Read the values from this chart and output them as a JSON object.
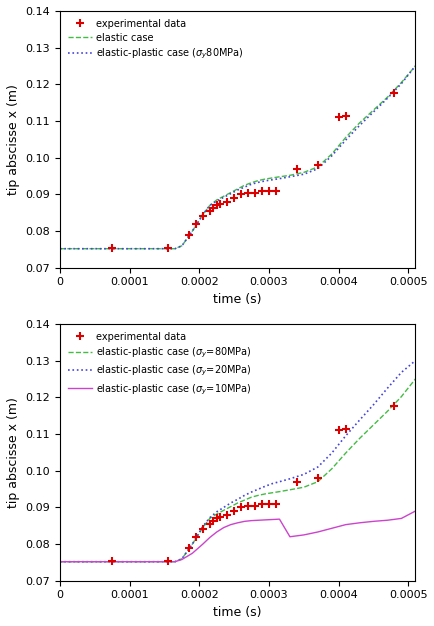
{
  "exp_x": [
    7.5e-05,
    0.000155,
    0.000185,
    0.000195,
    0.000205,
    0.000215,
    0.00022,
    0.000225,
    0.00023,
    0.00024,
    0.00025,
    0.00026,
    0.00027,
    0.00028,
    0.00029,
    0.0003,
    0.00031,
    0.00034,
    0.00037,
    0.0004,
    0.00041,
    0.00048
  ],
  "exp_y": [
    0.0754,
    0.0754,
    0.079,
    0.082,
    0.084,
    0.0855,
    0.0862,
    0.087,
    0.0875,
    0.088,
    0.089,
    0.09,
    0.0905,
    0.0905,
    0.091,
    0.091,
    0.091,
    0.097,
    0.098,
    0.1112,
    0.1115,
    0.1175
  ],
  "elastic_x": [
    0,
    0.00016,
    0.000165,
    0.000175,
    0.00019,
    0.000205,
    0.000215,
    0.000225,
    0.000235,
    0.000245,
    0.000255,
    0.000265,
    0.000275,
    0.000285,
    0.000295,
    0.000305,
    0.000315,
    0.00033,
    0.00035,
    0.00037,
    0.00039,
    0.00041,
    0.00043,
    0.00045,
    0.00047,
    0.00049,
    0.00051
  ],
  "elastic_y": [
    0.0752,
    0.0752,
    0.0752,
    0.076,
    0.08,
    0.0845,
    0.087,
    0.0885,
    0.0895,
    0.0905,
    0.0915,
    0.0925,
    0.0932,
    0.0938,
    0.0942,
    0.0945,
    0.0948,
    0.0952,
    0.096,
    0.0975,
    0.101,
    0.1055,
    0.1095,
    0.113,
    0.1165,
    0.1205,
    0.125
  ],
  "ep80_x": [
    0,
    0.00016,
    0.000165,
    0.000175,
    0.00019,
    0.000205,
    0.000215,
    0.000225,
    0.000235,
    0.000245,
    0.000255,
    0.000265,
    0.000275,
    0.000285,
    0.000295,
    0.000305,
    0.000315,
    0.00033,
    0.00035,
    0.00037,
    0.00039,
    0.00041,
    0.00043,
    0.00045,
    0.00047,
    0.00049,
    0.00051
  ],
  "ep80_y": [
    0.0752,
    0.0752,
    0.0752,
    0.076,
    0.08,
    0.0845,
    0.087,
    0.0882,
    0.0892,
    0.0902,
    0.0912,
    0.092,
    0.0928,
    0.0933,
    0.0937,
    0.094,
    0.0943,
    0.0948,
    0.0955,
    0.097,
    0.1005,
    0.1048,
    0.1088,
    0.1125,
    0.1162,
    0.1202,
    0.125
  ],
  "ep20_x": [
    0,
    0.00016,
    0.000165,
    0.000175,
    0.00019,
    0.000205,
    0.000215,
    0.000225,
    0.000235,
    0.000245,
    0.000255,
    0.000265,
    0.000275,
    0.000285,
    0.000295,
    0.000305,
    0.000315,
    0.00033,
    0.00035,
    0.00037,
    0.00039,
    0.00041,
    0.00043,
    0.00045,
    0.00047,
    0.00049,
    0.00051
  ],
  "ep20_y": [
    0.0752,
    0.0752,
    0.0752,
    0.076,
    0.08,
    0.0848,
    0.0872,
    0.0888,
    0.09,
    0.0912,
    0.0922,
    0.0933,
    0.0942,
    0.095,
    0.0958,
    0.0965,
    0.097,
    0.0978,
    0.099,
    0.101,
    0.1048,
    0.1095,
    0.1138,
    0.118,
    0.1225,
    0.1268,
    0.13
  ],
  "ep10_x": [
    0,
    0.00016,
    0.000165,
    0.000175,
    0.00019,
    0.000205,
    0.000215,
    0.000225,
    0.000235,
    0.000245,
    0.000255,
    0.000265,
    0.000275,
    0.000285,
    0.000295,
    0.000305,
    0.000315,
    0.00033,
    0.00035,
    0.00037,
    0.00039,
    0.00041,
    0.00043,
    0.00045,
    0.00047,
    0.00049,
    0.00051
  ],
  "ep10_y": [
    0.0752,
    0.0752,
    0.0752,
    0.0758,
    0.0775,
    0.08,
    0.0818,
    0.0833,
    0.0845,
    0.0853,
    0.0858,
    0.0862,
    0.0864,
    0.0865,
    0.0866,
    0.0867,
    0.0868,
    0.082,
    0.0825,
    0.0833,
    0.0843,
    0.0853,
    0.0858,
    0.0862,
    0.0865,
    0.087,
    0.089
  ],
  "xlim": [
    0,
    0.00051
  ],
  "ylim": [
    0.07,
    0.14
  ],
  "xlabel": "time (s)",
  "ylabel": "tip abscisse x (m)",
  "legend1_labels": [
    "experimental data",
    "elastic case",
    "elastic-plastic case (σy80MPa)"
  ],
  "legend2_labels": [
    "experimental data",
    "elastic-plastic case (σy=80MPa)",
    "elastic-plastic case (σy=20MPa)",
    "elastic-plastic case (σy=10MPa)"
  ],
  "color_exp": "#dd0000",
  "color_elastic": "#44bb44",
  "color_ep80": "#4444dd",
  "color_ep20": "#4444dd",
  "color_ep10": "#cc44cc",
  "yticks": [
    0.07,
    0.08,
    0.09,
    0.1,
    0.11,
    0.12,
    0.13,
    0.14
  ],
  "xticks": [
    0,
    0.0001,
    0.0002,
    0.0003,
    0.0004,
    0.0005
  ],
  "xticklabels": [
    "0",
    "0.0001",
    "0.0002",
    "0.0003",
    "0.0004",
    "0.0005"
  ],
  "bg_color": "#ffffff"
}
